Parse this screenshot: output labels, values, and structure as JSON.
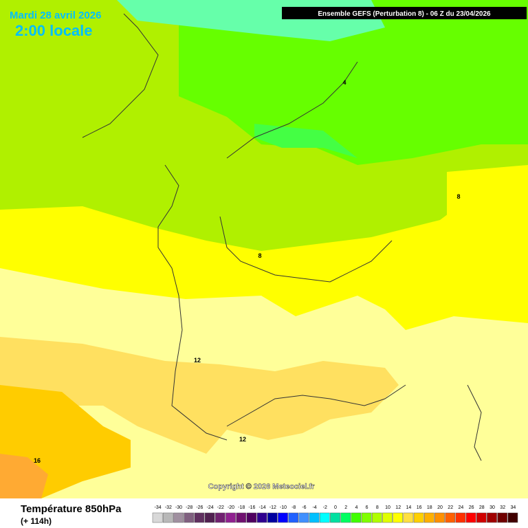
{
  "header": {
    "date": "Mardi 28 avril 2026",
    "time": "2:00 locale",
    "model": "Ensemble GEFS  (Perturbation 8)  -  06 Z du 23/04/2026"
  },
  "copyright": "Copyright © 2026 Meteociel.fr",
  "legend": {
    "title": "Température 850hPa",
    "lead": "(+ 114h)",
    "labels": [
      -34,
      -32,
      -30,
      -28,
      -26,
      -24,
      -22,
      -20,
      -18,
      -16,
      -14,
      -12,
      -10,
      -8,
      -6,
      -4,
      -2,
      0,
      2,
      4,
      6,
      8,
      10,
      12,
      14,
      16,
      18,
      20,
      22,
      24,
      26,
      28,
      30,
      32,
      34
    ],
    "colors": [
      "#d8d8d8",
      "#b8b8b8",
      "#a090a0",
      "#806080",
      "#603060",
      "#502050",
      "#702070",
      "#902090",
      "#701070",
      "#500060",
      "#300090",
      "#0000a0",
      "#0000ff",
      "#2060ff",
      "#4090ff",
      "#00c0ff",
      "#00ffff",
      "#00e0a0",
      "#00ff60",
      "#40ff00",
      "#80ff00",
      "#b0ff00",
      "#e0ff00",
      "#ffff00",
      "#ffe040",
      "#ffd000",
      "#ffb000",
      "#ff9000",
      "#ff6000",
      "#ff3000",
      "#ff0000",
      "#d00000",
      "#a00000",
      "#700000",
      "#400000"
    ]
  },
  "contour_labels": [
    {
      "text": "4"
    },
    {
      "text": "8"
    },
    {
      "text": "8"
    },
    {
      "text": "12"
    },
    {
      "text": "12"
    },
    {
      "text": "16"
    }
  ]
}
